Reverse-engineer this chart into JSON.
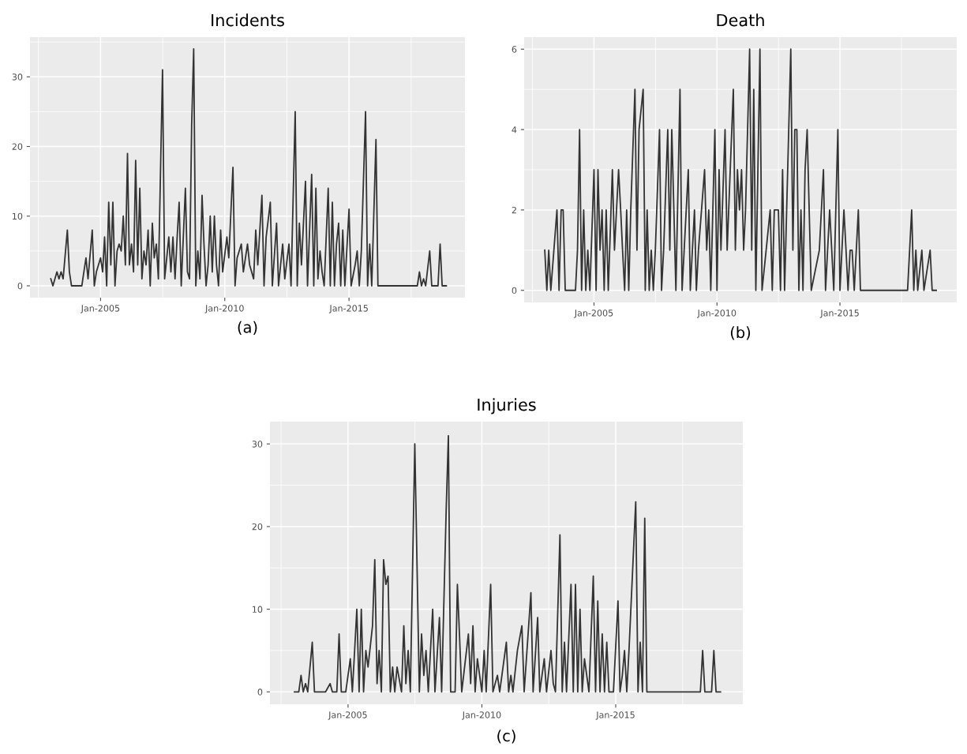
{
  "chart_data": [
    {
      "type": "line",
      "title": "Incidents",
      "annotations": [
        "(a)"
      ],
      "grid": true,
      "x": [
        "2003-01",
        "2003-02",
        "2003-04",
        "2003-05",
        "2003-06",
        "2003-07",
        "2003-09",
        "2003-10",
        "2003-11",
        "2004-04",
        "2004-05",
        "2004-06",
        "2004-07",
        "2004-09",
        "2004-10",
        "2004-11",
        "2005-01",
        "2005-02",
        "2005-03",
        "2005-04",
        "2005-05",
        "2005-06",
        "2005-07",
        "2005-08",
        "2005-09",
        "2005-10",
        "2005-11",
        "2005-12",
        "2006-01",
        "2006-02",
        "2006-03",
        "2006-04",
        "2006-05",
        "2006-06",
        "2006-07",
        "2006-08",
        "2006-09",
        "2006-10",
        "2006-11",
        "2006-12",
        "2007-01",
        "2007-02",
        "2007-03",
        "2007-04",
        "2007-05",
        "2007-07",
        "2007-08",
        "2007-09",
        "2007-10",
        "2007-11",
        "2007-12",
        "2008-01",
        "2008-02",
        "2008-03",
        "2008-04",
        "2008-06",
        "2008-07",
        "2008-08",
        "2008-09",
        "2008-10",
        "2008-11",
        "2008-12",
        "2009-01",
        "2009-02",
        "2009-03",
        "2009-04",
        "2009-05",
        "2009-06",
        "2009-07",
        "2009-08",
        "2009-09",
        "2009-10",
        "2009-11",
        "2009-12",
        "2010-02",
        "2010-03",
        "2010-05",
        "2010-06",
        "2010-07",
        "2010-09",
        "2010-10",
        "2010-12",
        "2011-01",
        "2011-03",
        "2011-04",
        "2011-05",
        "2011-07",
        "2011-08",
        "2011-09",
        "2011-11",
        "2011-12",
        "2012-02",
        "2012-03",
        "2012-05",
        "2012-06",
        "2012-08",
        "2012-09",
        "2012-11",
        "2012-12",
        "2013-01",
        "2013-02",
        "2013-04",
        "2013-05",
        "2013-07",
        "2013-08",
        "2013-09",
        "2013-10",
        "2013-11",
        "2013-12",
        "2014-01",
        "2014-03",
        "2014-04",
        "2014-05",
        "2014-06",
        "2014-07",
        "2014-08",
        "2014-09",
        "2014-10",
        "2014-11",
        "2015-01",
        "2015-02",
        "2015-04",
        "2015-05",
        "2015-06",
        "2015-07",
        "2015-09",
        "2015-10",
        "2015-11",
        "2015-12",
        "2016-02",
        "2016-03",
        "2017-10",
        "2017-11",
        "2017-12",
        "2018-01",
        "2018-02",
        "2018-04",
        "2018-05",
        "2018-08",
        "2018-09",
        "2018-10",
        "2018-12"
      ],
      "series": [
        {
          "color": "#333333",
          "values": [
            1,
            0,
            2,
            1,
            2,
            1,
            8,
            2,
            0,
            0,
            2,
            4,
            1,
            8,
            0,
            2,
            4,
            2,
            7,
            0,
            12,
            3,
            12,
            0,
            5,
            6,
            5,
            10,
            3,
            19,
            3,
            6,
            2,
            18,
            3,
            14,
            1,
            5,
            3,
            8,
            0,
            9,
            4,
            6,
            1,
            31,
            1,
            4,
            7,
            2,
            7,
            1,
            7,
            12,
            0,
            14,
            2,
            1,
            23,
            34,
            0,
            5,
            1,
            13,
            6,
            0,
            3,
            10,
            2,
            10,
            3,
            0,
            8,
            2,
            7,
            4,
            17,
            0,
            4,
            6,
            2,
            6,
            3,
            1,
            8,
            3,
            13,
            0,
            7,
            12,
            0,
            9,
            0,
            6,
            1,
            6,
            0,
            25,
            0,
            9,
            3,
            15,
            0,
            16,
            0,
            14,
            1,
            5,
            2,
            0,
            14,
            0,
            12,
            0,
            6,
            9,
            0,
            8,
            0,
            11,
            0,
            3,
            5,
            0,
            5,
            25,
            0,
            6,
            0,
            21,
            0,
            0,
            2,
            0,
            1,
            0,
            5,
            0,
            0,
            6,
            0,
            0
          ]
        }
      ],
      "xlim": [
        "2002-03",
        "2019-09"
      ],
      "xticks": [
        {
          "value": "2005-01",
          "label": "Jan-2005"
        },
        {
          "value": "2010-01",
          "label": "Jan-2010"
        },
        {
          "value": "2015-01",
          "label": "Jan-2015"
        }
      ],
      "ylim": [
        -1.7,
        35.7
      ],
      "yticks": [
        0,
        10,
        20,
        30
      ]
    },
    {
      "type": "line",
      "title": "Death",
      "annotations": [
        "(b)"
      ],
      "grid": true,
      "x": [
        "2003-01",
        "2003-02",
        "2003-03",
        "2003-04",
        "2003-07",
        "2003-08",
        "2003-09",
        "2003-10",
        "2003-11",
        "2004-04",
        "2004-05",
        "2004-06",
        "2004-07",
        "2004-08",
        "2004-09",
        "2004-10",
        "2004-11",
        "2005-01",
        "2005-02",
        "2005-03",
        "2005-04",
        "2005-05",
        "2005-06",
        "2005-07",
        "2005-08",
        "2005-10",
        "2005-11",
        "2006-01",
        "2006-02",
        "2006-03",
        "2006-04",
        "2006-05",
        "2006-06",
        "2006-07",
        "2006-09",
        "2006-10",
        "2006-11",
        "2007-01",
        "2007-02",
        "2007-03",
        "2007-04",
        "2007-05",
        "2007-06",
        "2007-07",
        "2007-09",
        "2007-10",
        "2007-11",
        "2008-01",
        "2008-02",
        "2008-03",
        "2008-04",
        "2008-05",
        "2008-07",
        "2008-08",
        "2008-09",
        "2008-11",
        "2008-12",
        "2009-02",
        "2009-03",
        "2009-04",
        "2009-07",
        "2009-08",
        "2009-09",
        "2009-10",
        "2009-12",
        "2010-01",
        "2010-02",
        "2010-03",
        "2010-05",
        "2010-06",
        "2010-09",
        "2010-10",
        "2010-11",
        "2010-12",
        "2011-01",
        "2011-02",
        "2011-03",
        "2011-05",
        "2011-06",
        "2011-07",
        "2011-08",
        "2011-10",
        "2011-11",
        "2012-01",
        "2012-03",
        "2012-04",
        "2012-05",
        "2012-07",
        "2012-08",
        "2012-09",
        "2012-10",
        "2013-01",
        "2013-02",
        "2013-03",
        "2013-04",
        "2013-05",
        "2013-06",
        "2013-07",
        "2013-08",
        "2013-09",
        "2013-10",
        "2013-11",
        "2014-03",
        "2014-05",
        "2014-06",
        "2014-08",
        "2014-09",
        "2014-10",
        "2014-12",
        "2015-01",
        "2015-03",
        "2015-04",
        "2015-05",
        "2015-06",
        "2015-07",
        "2015-08",
        "2015-10",
        "2015-11",
        "2017-10",
        "2017-12",
        "2018-01",
        "2018-02",
        "2018-03",
        "2018-05",
        "2018-06",
        "2018-09",
        "2018-10",
        "2018-12"
      ],
      "series": [
        {
          "color": "#333333",
          "values": [
            1,
            0,
            1,
            0,
            2,
            0,
            2,
            2,
            0,
            0,
            1,
            4,
            0,
            2,
            0,
            1,
            0,
            3,
            0,
            3,
            1,
            2,
            0,
            2,
            0,
            3,
            1,
            3,
            2,
            1,
            0,
            2,
            0,
            2,
            5,
            1,
            4,
            5,
            0,
            2,
            0,
            1,
            0,
            1,
            4,
            0,
            1,
            4,
            1,
            4,
            2,
            0,
            5,
            0,
            1,
            3,
            0,
            2,
            0,
            1,
            3,
            1,
            2,
            0,
            4,
            0,
            3,
            1,
            4,
            1,
            5,
            1,
            3,
            2,
            3,
            1,
            2,
            6,
            1,
            5,
            0,
            6,
            0,
            1,
            2,
            0,
            2,
            2,
            0,
            3,
            0,
            6,
            1,
            4,
            4,
            0,
            2,
            0,
            3,
            4,
            2,
            0,
            1,
            3,
            0,
            2,
            1,
            0,
            4,
            0,
            2,
            1,
            0,
            1,
            1,
            0,
            2,
            0,
            0,
            2,
            0,
            1,
            0,
            1,
            0,
            1,
            0,
            0
          ]
        }
      ],
      "xlim": [
        "2002-03",
        "2019-10"
      ],
      "xticks": [
        {
          "value": "2005-01",
          "label": "Jan-2005"
        },
        {
          "value": "2010-01",
          "label": "Jan-2010"
        },
        {
          "value": "2015-01",
          "label": "Jan-2015"
        }
      ],
      "ylim": [
        -0.3,
        6.3
      ],
      "yticks": [
        0,
        2,
        4,
        6
      ]
    },
    {
      "type": "line",
      "title": "Injuries",
      "annotations": [
        "(c)"
      ],
      "grid": true,
      "x": [
        "2003-01",
        "2003-03",
        "2003-04",
        "2003-05",
        "2003-06",
        "2003-07",
        "2003-09",
        "2003-10",
        "2004-03",
        "2004-05",
        "2004-06",
        "2004-08",
        "2004-09",
        "2004-10",
        "2004-12",
        "2005-02",
        "2005-03",
        "2005-04",
        "2005-05",
        "2005-06",
        "2005-07",
        "2005-08",
        "2005-09",
        "2005-10",
        "2005-12",
        "2006-01",
        "2006-02",
        "2006-03",
        "2006-04",
        "2006-05",
        "2006-06",
        "2006-07",
        "2006-08",
        "2006-09",
        "2006-10",
        "2006-11",
        "2007-01",
        "2007-02",
        "2007-03",
        "2007-04",
        "2007-05",
        "2007-07",
        "2007-08",
        "2007-09",
        "2007-10",
        "2007-11",
        "2007-12",
        "2008-01",
        "2008-03",
        "2008-04",
        "2008-06",
        "2008-07",
        "2008-09",
        "2008-10",
        "2008-11",
        "2009-01",
        "2009-02",
        "2009-03",
        "2009-04",
        "2009-07",
        "2009-08",
        "2009-09",
        "2009-10",
        "2009-11",
        "2010-01",
        "2010-02",
        "2010-03",
        "2010-05",
        "2010-06",
        "2010-08",
        "2010-09",
        "2010-12",
        "2011-01",
        "2011-02",
        "2011-03",
        "2011-05",
        "2011-07",
        "2011-08",
        "2011-11",
        "2011-12",
        "2012-02",
        "2012-03",
        "2012-05",
        "2012-06",
        "2012-08",
        "2012-09",
        "2012-10",
        "2012-12",
        "2013-01",
        "2013-02",
        "2013-03",
        "2013-05",
        "2013-06",
        "2013-07",
        "2013-08",
        "2013-09",
        "2013-10",
        "2013-11",
        "2014-01",
        "2014-03",
        "2014-04",
        "2014-05",
        "2014-06",
        "2014-07",
        "2014-08",
        "2014-09",
        "2014-10",
        "2014-12",
        "2015-02",
        "2015-03",
        "2015-04",
        "2015-05",
        "2015-06",
        "2015-07",
        "2015-10",
        "2015-11",
        "2015-12",
        "2016-01",
        "2016-02",
        "2016-03",
        "2018-03",
        "2018-04",
        "2018-05",
        "2018-08",
        "2018-09",
        "2018-10",
        "2018-12"
      ],
      "series": [
        {
          "color": "#333333",
          "values": [
            0,
            0,
            2,
            0,
            1,
            0,
            6,
            0,
            0,
            1,
            0,
            0,
            7,
            0,
            0,
            4,
            0,
            5,
            10,
            0,
            10,
            0,
            5,
            3,
            8,
            16,
            1,
            5,
            0,
            16,
            13,
            14,
            0,
            3,
            0,
            3,
            0,
            8,
            1,
            5,
            0,
            30,
            15,
            0,
            7,
            2,
            5,
            0,
            10,
            0,
            9,
            0,
            22,
            31,
            0,
            0,
            13,
            7,
            0,
            7,
            1,
            8,
            0,
            4,
            0,
            5,
            0,
            13,
            0,
            2,
            0,
            6,
            0,
            2,
            0,
            5,
            8,
            0,
            12,
            0,
            9,
            0,
            4,
            0,
            5,
            1,
            0,
            19,
            0,
            6,
            0,
            13,
            0,
            13,
            0,
            10,
            0,
            4,
            0,
            14,
            0,
            11,
            0,
            7,
            0,
            6,
            0,
            0,
            11,
            0,
            2,
            5,
            0,
            5,
            23,
            0,
            6,
            0,
            21,
            0,
            0,
            5,
            0,
            0,
            5,
            0,
            0
          ]
        }
      ],
      "xlim": [
        "2002-02",
        "2019-10"
      ],
      "xticks": [
        {
          "value": "2005-01",
          "label": "Jan-2005"
        },
        {
          "value": "2010-01",
          "label": "Jan-2010"
        },
        {
          "value": "2015-01",
          "label": "Jan-2015"
        }
      ],
      "ylim": [
        -1.5,
        32.7
      ],
      "yticks": [
        0,
        10,
        20,
        30
      ]
    }
  ]
}
